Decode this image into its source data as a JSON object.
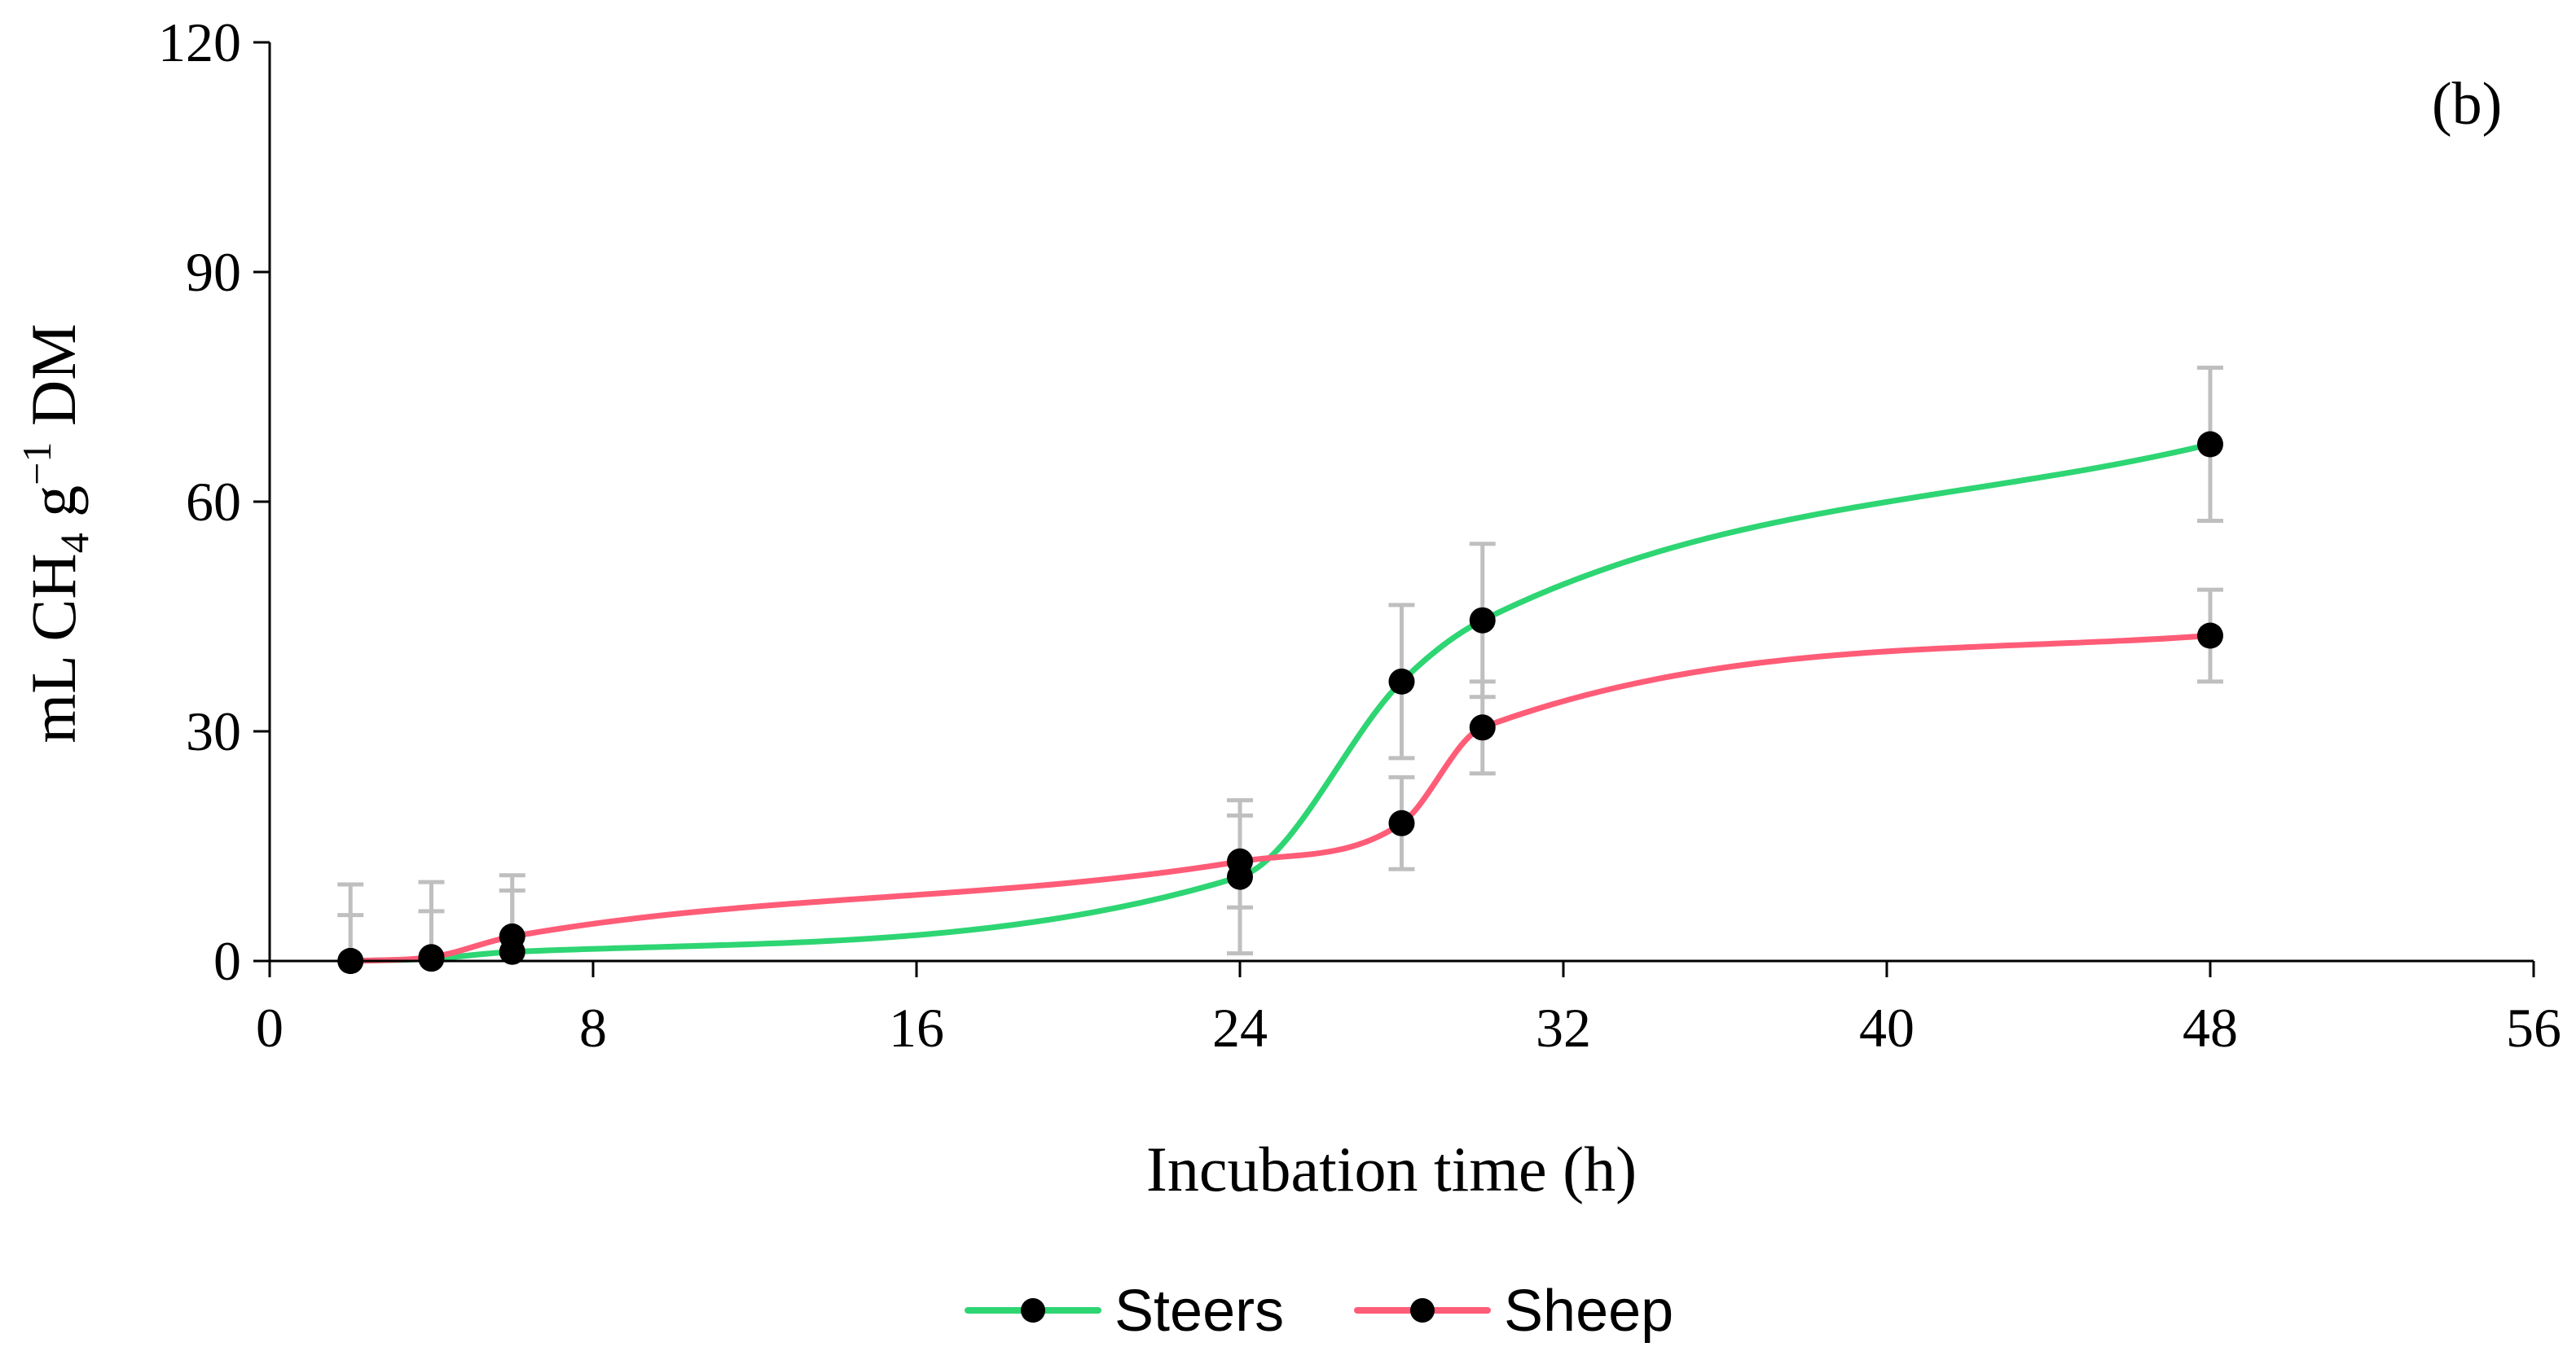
{
  "chart_data": {
    "type": "line",
    "panel_label": "(b)",
    "xlabel": "Incubation time (h)",
    "ylabel": {
      "prefix": "mL CH",
      "subscript": "4",
      "middle": " g",
      "superscript": "−1",
      "suffix": " DM"
    },
    "xlim": [
      0,
      56
    ],
    "ylim": [
      0,
      120
    ],
    "x_ticks": [
      0,
      8,
      16,
      24,
      32,
      40,
      48,
      56
    ],
    "y_ticks": [
      0,
      30,
      60,
      90,
      120
    ],
    "x": [
      2,
      4,
      6,
      24,
      28,
      30,
      48
    ],
    "series": [
      {
        "name": "Steers",
        "color": "#2ed573",
        "marker_color": "#000000",
        "values": [
          0,
          0.3,
          1.2,
          11,
          36.5,
          44.5,
          67.5
        ],
        "error": [
          10,
          10,
          10,
          10,
          10,
          10,
          10
        ]
      },
      {
        "name": "Sheep",
        "color": "#ff5c77",
        "marker_color": "#000000",
        "values": [
          0,
          0.5,
          3.2,
          13,
          18,
          30.5,
          42.5
        ],
        "error": [
          6,
          6,
          6,
          6,
          6,
          6,
          6
        ]
      }
    ],
    "error_bar_color": "#bfbfbf",
    "legend_position": "bottom-center",
    "grid": false
  }
}
